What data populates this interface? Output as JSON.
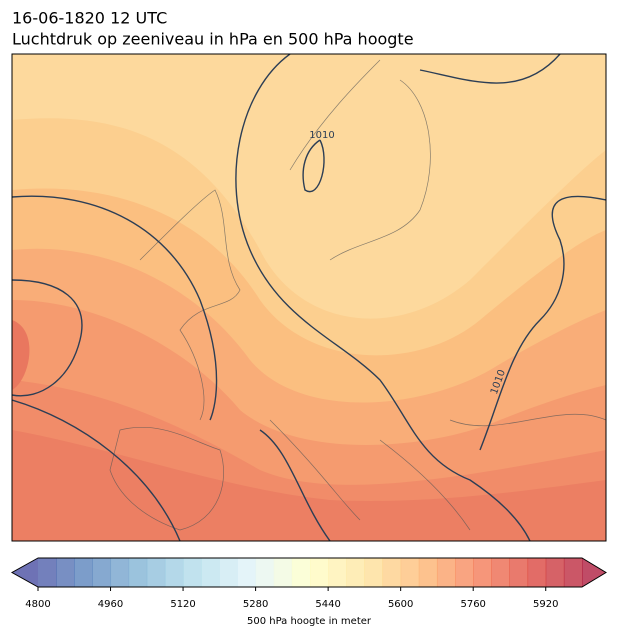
{
  "header": {
    "date_line": "16-06-1820 12 UTC",
    "title": "Luchtdruk op zeeniveau in hPa en 500 hPa hoogte"
  },
  "map": {
    "contour_labels": [
      "1010",
      "1010"
    ]
  },
  "colorbar": {
    "lim": [
      4800,
      6000
    ],
    "ticks": [
      4800,
      4960,
      5120,
      5280,
      5440,
      5600,
      5760,
      5920
    ],
    "label": "500 hPa hoogte in meter"
  }
}
